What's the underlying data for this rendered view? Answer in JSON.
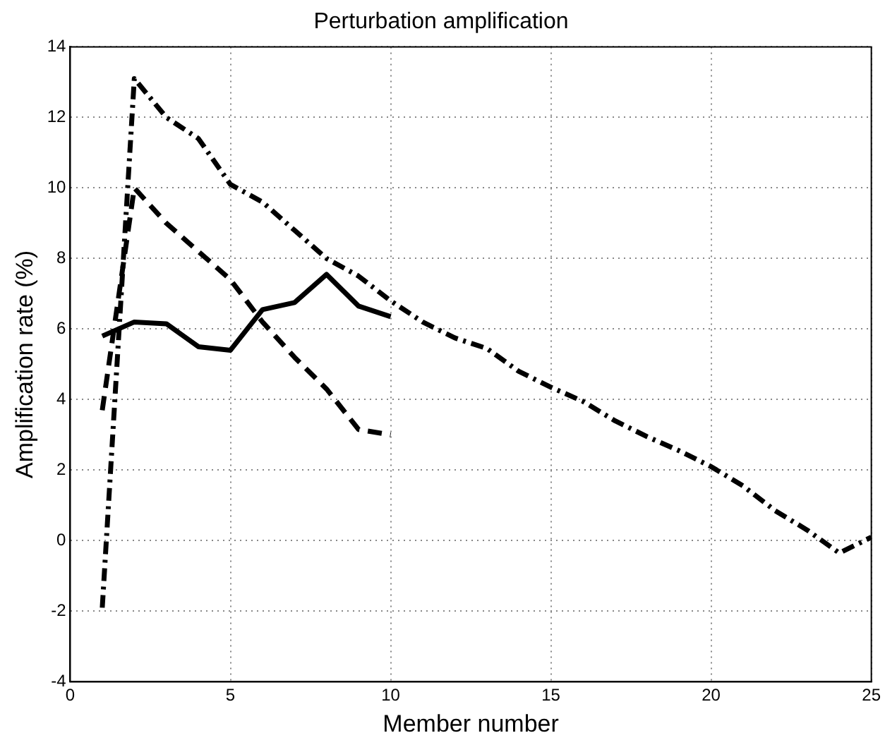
{
  "chart_data": {
    "type": "line",
    "title": "Perturbation amplification",
    "xlabel": "Member number",
    "ylabel": "Amplification rate (%)",
    "xlim": [
      0,
      25
    ],
    "xticks": [
      0,
      5,
      10,
      15,
      20,
      25
    ],
    "ylim": [
      -4,
      14
    ],
    "yticks": [
      -4,
      -2,
      0,
      2,
      4,
      6,
      8,
      10,
      12,
      14
    ],
    "grid": true,
    "legend": false,
    "marker": "none",
    "series": [
      {
        "color": "#000000",
        "line_style": "solid",
        "x": [
          1,
          2,
          3,
          4,
          5,
          6,
          7,
          8,
          9,
          10
        ],
        "values": [
          5.8,
          6.2,
          6.15,
          5.5,
          5.4,
          6.55,
          6.75,
          7.55,
          6.65,
          6.35
        ]
      },
      {
        "color": "#000000",
        "line_style": "dashed",
        "x": [
          1,
          2,
          3,
          4,
          5,
          6,
          7,
          8,
          9,
          10
        ],
        "values": [
          3.7,
          10.0,
          9.0,
          8.2,
          7.4,
          6.2,
          5.2,
          4.3,
          3.15,
          3.0
        ]
      },
      {
        "color": "#000000",
        "line_style": "dashdot",
        "x": [
          1,
          2,
          3,
          4,
          5,
          6,
          7,
          8,
          9,
          10,
          11,
          12,
          13,
          14,
          15,
          16,
          17,
          18,
          19,
          20,
          21,
          22,
          23,
          24,
          25
        ],
        "values": [
          -1.9,
          13.1,
          12.0,
          11.4,
          10.1,
          9.6,
          8.8,
          8.0,
          7.5,
          6.8,
          6.2,
          5.75,
          5.45,
          4.8,
          4.35,
          3.95,
          3.4,
          2.95,
          2.55,
          2.1,
          1.55,
          0.85,
          0.3,
          -0.35,
          0.1
        ]
      }
    ]
  }
}
